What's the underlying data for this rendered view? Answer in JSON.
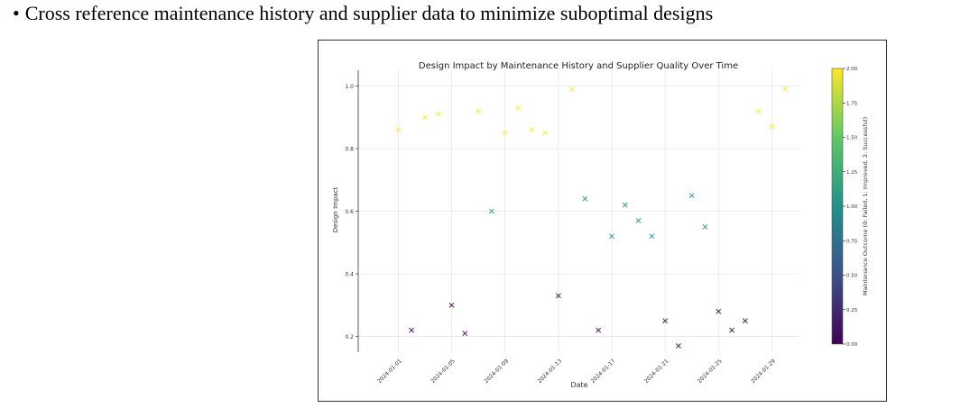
{
  "bullet": {
    "symbol": "•",
    "text": "Cross reference maintenance history and supplier data to minimize suboptimal designs"
  },
  "chart_data": {
    "type": "scatter",
    "title": "Design Impact by Maintenance History and Supplier Quality Over Time",
    "xlabel": "Date",
    "ylabel": "Design Impact",
    "colorbar_label": "Maintenance Outcome (0: Failed, 1: Improved, 2: Successful)",
    "xlim": [
      "2023-12-29",
      "2024-01-31"
    ],
    "ylim": [
      0.15,
      1.05
    ],
    "x_ticks": [
      "2024-01-01",
      "2024-01-05",
      "2024-01-09",
      "2024-01-13",
      "2024-01-17",
      "2024-01-21",
      "2024-01-25",
      "2024-01-29"
    ],
    "y_ticks": [
      0.2,
      0.4,
      0.6,
      0.8,
      1.0
    ],
    "y_tick_labels": [
      "0.2",
      "0.4",
      "0.6",
      "0.8",
      "1.0"
    ],
    "colorbar_ticks": [
      0.0,
      0.25,
      0.5,
      0.75,
      1.0,
      1.25,
      1.5,
      1.75,
      2.0
    ],
    "colorbar_tick_labels": [
      "0.00",
      "0.25",
      "0.50",
      "0.75",
      "1.00",
      "1.25",
      "1.50",
      "1.75",
      "2.00"
    ],
    "colorbar_range": [
      0,
      2
    ],
    "grid": true,
    "marker": "x",
    "colormap": [
      "#440154",
      "#3b528b",
      "#21918c",
      "#5ec962",
      "#fde725"
    ],
    "points": [
      {
        "x": "2024-01-01",
        "y": 0.86,
        "outcome": 2
      },
      {
        "x": "2024-01-02",
        "y": 0.22,
        "outcome": 0
      },
      {
        "x": "2024-01-03",
        "y": 0.9,
        "outcome": 2
      },
      {
        "x": "2024-01-04",
        "y": 0.91,
        "outcome": 2
      },
      {
        "x": "2024-01-05",
        "y": 0.3,
        "outcome": 0
      },
      {
        "x": "2024-01-06",
        "y": 0.21,
        "outcome": 0
      },
      {
        "x": "2024-01-07",
        "y": 0.92,
        "outcome": 2
      },
      {
        "x": "2024-01-08",
        "y": 0.6,
        "outcome": 1
      },
      {
        "x": "2024-01-09",
        "y": 0.85,
        "outcome": 2
      },
      {
        "x": "2024-01-10",
        "y": 0.93,
        "outcome": 2
      },
      {
        "x": "2024-01-11",
        "y": 0.86,
        "outcome": 2
      },
      {
        "x": "2024-01-12",
        "y": 0.85,
        "outcome": 2
      },
      {
        "x": "2024-01-13",
        "y": 0.33,
        "outcome": 0
      },
      {
        "x": "2024-01-14",
        "y": 0.99,
        "outcome": 2
      },
      {
        "x": "2024-01-15",
        "y": 0.64,
        "outcome": 1
      },
      {
        "x": "2024-01-16",
        "y": 0.22,
        "outcome": 0
      },
      {
        "x": "2024-01-17",
        "y": 0.52,
        "outcome": 1
      },
      {
        "x": "2024-01-18",
        "y": 0.62,
        "outcome": 1
      },
      {
        "x": "2024-01-19",
        "y": 0.57,
        "outcome": 1
      },
      {
        "x": "2024-01-20",
        "y": 0.52,
        "outcome": 1
      },
      {
        "x": "2024-01-21",
        "y": 0.25,
        "outcome": 0
      },
      {
        "x": "2024-01-22",
        "y": 0.17,
        "outcome": 0
      },
      {
        "x": "2024-01-23",
        "y": 0.65,
        "outcome": 1
      },
      {
        "x": "2024-01-24",
        "y": 0.55,
        "outcome": 1
      },
      {
        "x": "2024-01-25",
        "y": 0.28,
        "outcome": 0
      },
      {
        "x": "2024-01-26",
        "y": 0.22,
        "outcome": 0
      },
      {
        "x": "2024-01-27",
        "y": 0.25,
        "outcome": 0
      },
      {
        "x": "2024-01-28",
        "y": 0.92,
        "outcome": 2
      },
      {
        "x": "2024-01-29",
        "y": 0.87,
        "outcome": 2
      },
      {
        "x": "2024-01-30",
        "y": 0.99,
        "outcome": 2
      }
    ]
  }
}
